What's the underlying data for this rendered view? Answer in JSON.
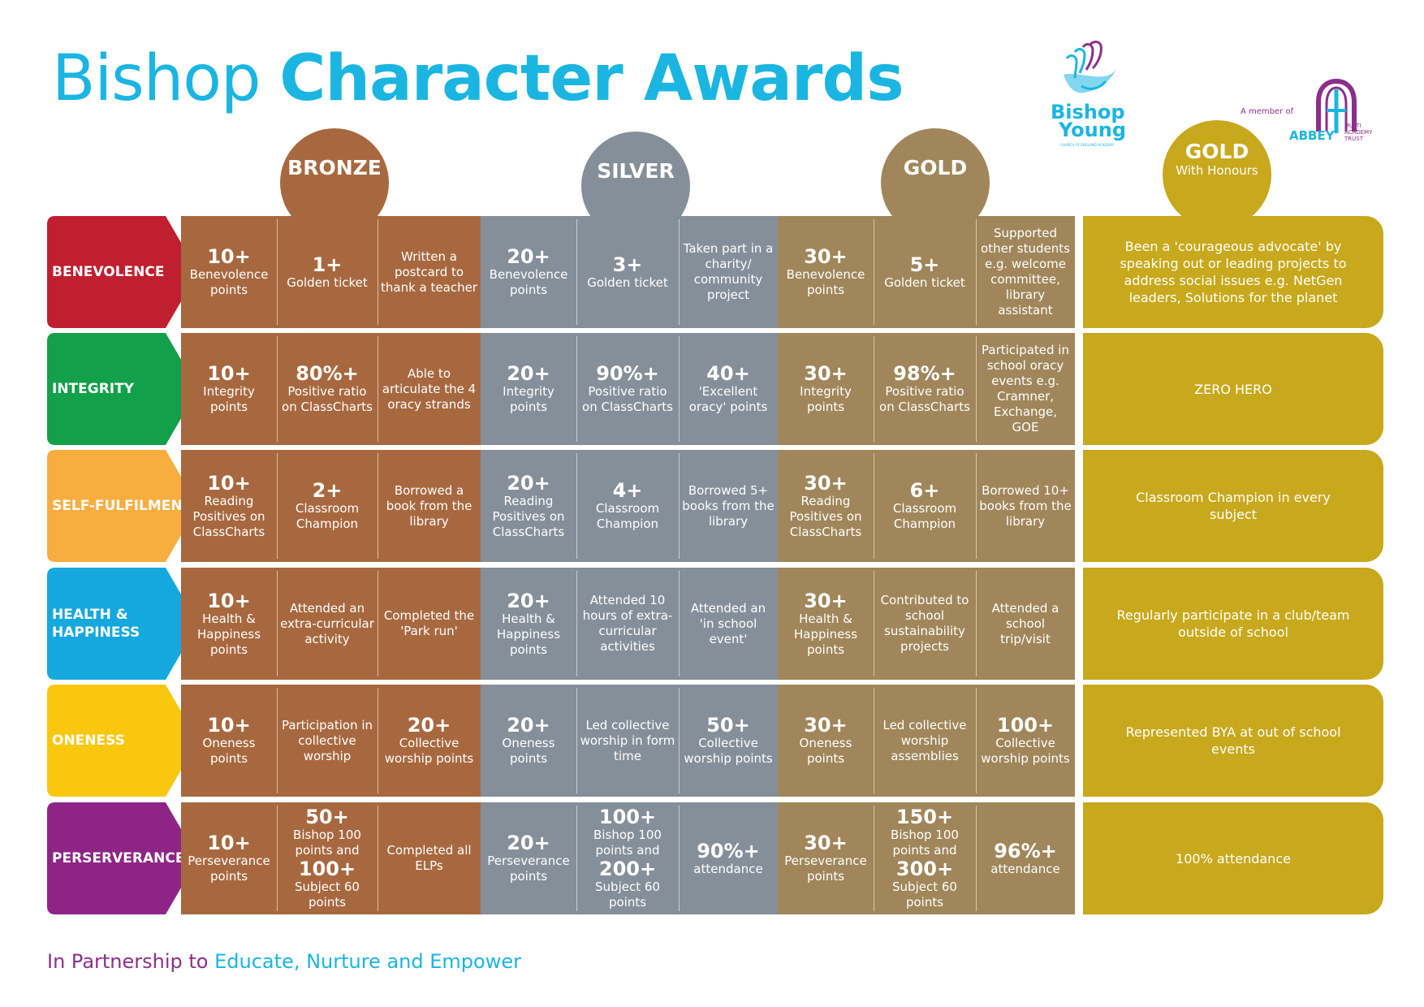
{
  "title": {
    "part1": "Bishop",
    "part2": "Character Awards"
  },
  "logos": {
    "bishop_young": {
      "word1": "Bishop",
      "word2": "Young",
      "subtitle": "CHURCH OF ENGLAND ACADEMY"
    },
    "abbey": {
      "member_text": "A member of",
      "word": "ABBEY",
      "mat": "MULTI ACADEMY TRUST"
    }
  },
  "tiers": [
    {
      "label": "BRONZE",
      "sub": ""
    },
    {
      "label": "SILVER",
      "sub": ""
    },
    {
      "label": "GOLD",
      "sub": ""
    },
    {
      "label": "GOLD",
      "sub": "With Honours"
    }
  ],
  "colors": {
    "bronze": "#a8683f",
    "silver": "#858f99",
    "gold": "#a0865a",
    "honours": "#c8a81c",
    "title": "#1bb5e2",
    "footer": "#8b2f8b"
  },
  "rows": [
    {
      "name": "BENEVOLENCE",
      "color": "#c01f2f",
      "bronze": [
        {
          "big": "10+",
          "text": "Benevolence points"
        },
        {
          "big": "1+",
          "text": "Golden ticket"
        },
        {
          "big": "",
          "text": "Written a postcard to thank a teacher"
        }
      ],
      "silver": [
        {
          "big": "20+",
          "text": "Benevolence points"
        },
        {
          "big": "3+",
          "text": "Golden ticket"
        },
        {
          "big": "",
          "text": "Taken part in a charity/ community project"
        }
      ],
      "gold": [
        {
          "big": "30+",
          "text": "Benevolence points"
        },
        {
          "big": "5+",
          "text": "Golden ticket"
        },
        {
          "big": "",
          "text": "Supported other students e.g. welcome committee, library assistant"
        }
      ],
      "honours": "Been a 'courageous advocate' by speaking out or leading projects to address social issues e.g. NetGen leaders, Solutions for the planet"
    },
    {
      "name": "INTEGRITY",
      "color": "#12a04a",
      "bronze": [
        {
          "big": "10+",
          "text": "Integrity points"
        },
        {
          "big": "80%+",
          "text": "Positive ratio on ClassCharts"
        },
        {
          "big": "",
          "text": "Able to articulate the 4 oracy strands"
        }
      ],
      "silver": [
        {
          "big": "20+",
          "text": "Integrity points"
        },
        {
          "big": "90%+",
          "text": "Positive ratio on ClassCharts"
        },
        {
          "big": "40+",
          "text": "'Excellent oracy' points"
        }
      ],
      "gold": [
        {
          "big": "30+",
          "text": "Integrity points"
        },
        {
          "big": "98%+",
          "text": "Positive ratio on ClassCharts"
        },
        {
          "big": "",
          "text": "Participated in school oracy events e.g. Cramner, Exchange, GOE"
        }
      ],
      "honours": "ZERO HERO"
    },
    {
      "name": "SELF-FULFILMENT",
      "color": "#f8ad3f",
      "bronze": [
        {
          "big": "10+",
          "text": "Reading Positives on ClassCharts"
        },
        {
          "big": "2+",
          "text": "Classroom Champion"
        },
        {
          "big": "",
          "text": "Borrowed a book from the library"
        }
      ],
      "silver": [
        {
          "big": "20+",
          "text": "Reading Positives on ClassCharts"
        },
        {
          "big": "4+",
          "text": "Classroom Champion"
        },
        {
          "big": "",
          "text": "Borrowed 5+ books from the library"
        }
      ],
      "gold": [
        {
          "big": "30+",
          "text": "Reading Positives on ClassCharts"
        },
        {
          "big": "6+",
          "text": "Classroom Champion"
        },
        {
          "big": "",
          "text": "Borrowed 10+ books from the library"
        }
      ],
      "honours": "Classroom Champion in every subject"
    },
    {
      "name": "HEALTH & HAPPINESS",
      "color": "#14a8df",
      "bronze": [
        {
          "big": "10+",
          "text": "Health & Happiness points"
        },
        {
          "big": "",
          "text": "Attended an extra-curricular activity"
        },
        {
          "big": "",
          "text": "Completed the 'Park run'"
        }
      ],
      "silver": [
        {
          "big": "20+",
          "text": "Health & Happiness points"
        },
        {
          "big": "",
          "text": "Attended 10 hours of extra-curricular activities"
        },
        {
          "big": "",
          "text": "Attended an 'in school event'"
        }
      ],
      "gold": [
        {
          "big": "30+",
          "text": "Health & Happiness points"
        },
        {
          "big": "",
          "text": "Contributed to school sustainability projects"
        },
        {
          "big": "",
          "text": "Attended a school trip/visit"
        }
      ],
      "honours": "Regularly participate in a club/team outside of school"
    },
    {
      "name": "ONENESS",
      "color": "#f9c70f",
      "bronze": [
        {
          "big": "10+",
          "text": "Oneness points"
        },
        {
          "big": "",
          "text": "Participation in collective worship"
        },
        {
          "big": "20+",
          "text": "Collective worship points"
        }
      ],
      "silver": [
        {
          "big": "20+",
          "text": "Oneness points"
        },
        {
          "big": "",
          "text": "Led collective worship in form time"
        },
        {
          "big": "50+",
          "text": "Collective worship points"
        }
      ],
      "gold": [
        {
          "big": "30+",
          "text": "Oneness points"
        },
        {
          "big": "",
          "text": "Led collective worship assemblies"
        },
        {
          "big": "100+",
          "text": "Collective worship points"
        }
      ],
      "honours": "Represented BYA at out of school events"
    },
    {
      "name": "PERSERVERANCE",
      "color": "#8f2487",
      "bronze": [
        {
          "big": "10+",
          "text": "Perseverance points"
        },
        {
          "big": "50+",
          "text": "Bishop 100 points and",
          "big2": "100+",
          "text2": "Subject 60 points"
        },
        {
          "big": "",
          "text": "Completed all ELPs"
        }
      ],
      "silver": [
        {
          "big": "20+",
          "text": "Perseverance points"
        },
        {
          "big": "100+",
          "text": "Bishop 100 points and",
          "big2": "200+",
          "text2": "Subject 60 points"
        },
        {
          "big": "90%+",
          "text": "attendance"
        }
      ],
      "gold": [
        {
          "big": "30+",
          "text": "Perseverance points"
        },
        {
          "big": "150+",
          "text": "Bishop 100 points and",
          "big2": "300+",
          "text2": "Subject 60 points"
        },
        {
          "big": "96%+",
          "text": "attendance"
        }
      ],
      "honours": "100% attendance"
    }
  ],
  "footer": {
    "part1": "In Partnership to",
    "part2": "Educate, Nurture and Empower"
  }
}
